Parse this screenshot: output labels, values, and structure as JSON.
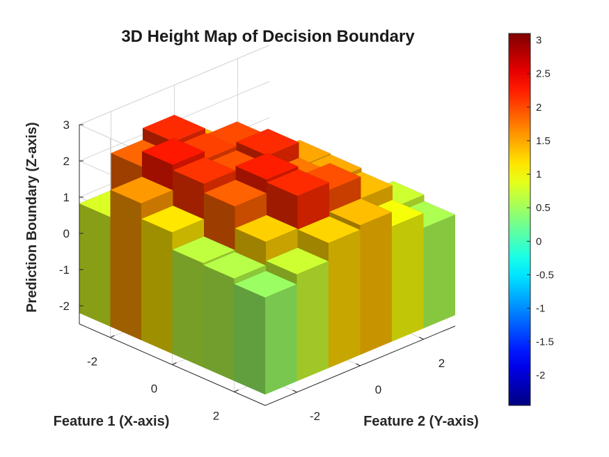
{
  "chart_data": {
    "type": "surface",
    "title": "3D Height Map of Decision Boundary",
    "xlabel": "Feature 1 (X-axis)",
    "ylabel": "Feature 2 (Y-axis)",
    "zlabel": "Prediction Boundary (Z-axis)",
    "xlim": [
      -3,
      3
    ],
    "ylim": [
      -3,
      3
    ],
    "zlim": [
      -2.5,
      3
    ],
    "x_ticks": [
      -2,
      0,
      2
    ],
    "y_ticks": [
      -2,
      0,
      2
    ],
    "z_ticks": [
      -2,
      -1,
      0,
      1,
      2,
      3
    ],
    "colorbar": {
      "colormap": "jet",
      "range": [
        -2.45,
        3.1
      ],
      "ticks": [
        -2,
        -1.5,
        -1,
        -0.5,
        0,
        0.5,
        1,
        1.5,
        2,
        2.5,
        3
      ]
    },
    "grid": true,
    "view": "isometric-3d",
    "x": [
      -3,
      -2,
      -1,
      0,
      1,
      2,
      3
    ],
    "y": [
      -3,
      -2,
      -1,
      0,
      1,
      2,
      3
    ],
    "z": [
      [
        -0.3,
        0.6,
        1.9,
        2.2,
        0.3,
        -1.5,
        -0.2
      ],
      [
        0.7,
        2.3,
        2.6,
        2.0,
        1.2,
        -0.5,
        -1.2
      ],
      [
        0.5,
        2.8,
        1.4,
        2.2,
        2.6,
        0.0,
        -1.8
      ],
      [
        -0.3,
        1.6,
        2.7,
        1.5,
        2.4,
        1.0,
        -0.8
      ],
      [
        0.5,
        0.9,
        2.3,
        2.5,
        0.6,
        1.9,
        -0.3
      ],
      [
        0.5,
        0.6,
        1.3,
        2.6,
        2.2,
        0.8,
        0.6
      ],
      [
        0.5,
        0.3,
        0.8,
        0.3,
        0.4,
        0.5,
        0.4
      ]
    ]
  }
}
